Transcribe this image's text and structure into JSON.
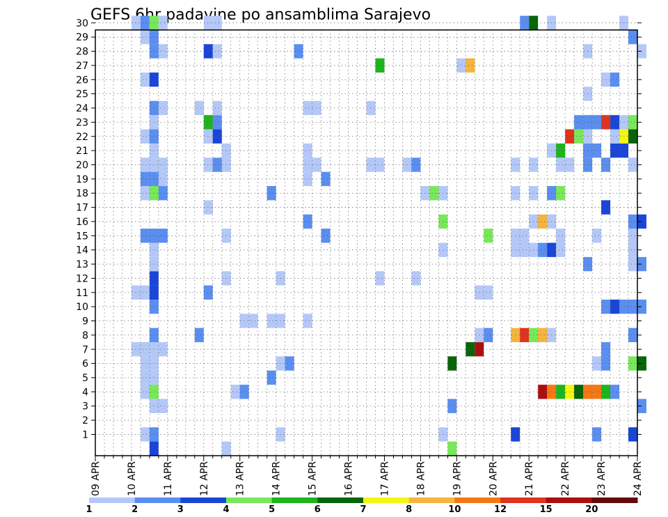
{
  "chart_data": {
    "type": "heatmap",
    "title": "GEFS 6hr padavine po ansamblima Sarajevo",
    "x_ticks": [
      "09 APR",
      "10 APR",
      "11 APR",
      "12 APR",
      "13 APR",
      "14 APR",
      "15 APR",
      "16 APR",
      "17 APR",
      "18 APR",
      "19 APR",
      "20 APR",
      "21 APR",
      "22 APR",
      "23 APR",
      "24 APR"
    ],
    "y_ticks": [
      "1",
      "2",
      "3",
      "4",
      "5",
      "6",
      "7",
      "8",
      "9",
      "10",
      "11",
      "12",
      "13",
      "14",
      "15",
      "16",
      "17",
      "18",
      "19",
      "20",
      "21",
      "22",
      "23",
      "24",
      "25",
      "26",
      "27",
      "28",
      "29",
      "30"
    ],
    "x_range": [
      "09 APR 00",
      "24 APR 00"
    ],
    "y_range": [
      0,
      30
    ],
    "time_step_hours": 6,
    "grid": "dotted",
    "legend": {
      "placement": "bottom",
      "labels": [
        "1",
        "2",
        "3",
        "4",
        "5",
        "6",
        "7",
        "8",
        "10",
        "12",
        "15",
        "20"
      ],
      "colors": [
        "#b4c8f8",
        "#5a8ef0",
        "#1a46d8",
        "#78e85a",
        "#1eb41e",
        "#0a640a",
        "#f5f514",
        "#f5b43c",
        "#f57814",
        "#e1321e",
        "#aa0f0f",
        "#640a0a"
      ]
    },
    "cells": [
      {
        "member": 1,
        "time": "10 APR 06",
        "class": 1
      },
      {
        "member": 1,
        "time": "10 APR 12",
        "class": 2
      },
      {
        "member": 1,
        "time": "14 APR 00",
        "class": 1
      },
      {
        "member": 1,
        "time": "18 APR 12",
        "class": 1
      },
      {
        "member": 1,
        "time": "20 APR 12",
        "class": 3
      },
      {
        "member": 1,
        "time": "22 APR 18",
        "class": 2
      },
      {
        "member": 1,
        "time": "23 APR 18",
        "class": 3
      },
      {
        "member": 3,
        "time": "10 APR 12",
        "class": 1
      },
      {
        "member": 3,
        "time": "10 APR 18",
        "class": 1
      },
      {
        "member": 3,
        "time": "18 APR 18",
        "class": 2
      },
      {
        "member": 3,
        "time": "23 APR 24",
        "class": 2
      },
      {
        "member": 4,
        "time": "10 APR 06",
        "class": 1
      },
      {
        "member": 4,
        "time": "10 APR 12",
        "class": 4
      },
      {
        "member": 4,
        "time": "12 APR 18",
        "class": 1
      },
      {
        "member": 4,
        "time": "13 APR 00",
        "class": 2
      },
      {
        "member": 4,
        "time": "21 APR 06",
        "class": 11
      },
      {
        "member": 4,
        "time": "21 APR 12",
        "class": 9
      },
      {
        "member": 4,
        "time": "21 APR 18",
        "class": 5
      },
      {
        "member": 4,
        "time": "22 APR 00",
        "class": 7
      },
      {
        "member": 4,
        "time": "22 APR 06",
        "class": 6
      },
      {
        "member": 4,
        "time": "22 APR 12",
        "class": 9
      },
      {
        "member": 4,
        "time": "22 APR 18",
        "class": 9
      },
      {
        "member": 4,
        "time": "23 APR 00",
        "class": 5
      },
      {
        "member": 4,
        "time": "23 APR 06",
        "class": 2
      },
      {
        "member": 5,
        "time": "10 APR 06",
        "class": 1
      },
      {
        "member": 5,
        "time": "10 APR 12",
        "class": 1
      },
      {
        "member": 5,
        "time": "13 APR 18",
        "class": 2
      },
      {
        "member": 6,
        "time": "10 APR 06",
        "class": 1
      },
      {
        "member": 6,
        "time": "10 APR 12",
        "class": 1
      },
      {
        "member": 6,
        "time": "14 APR 00",
        "class": 1
      },
      {
        "member": 6,
        "time": "14 APR 06",
        "class": 2
      },
      {
        "member": 6,
        "time": "18 APR 18",
        "class": 6
      },
      {
        "member": 6,
        "time": "22 APR 18",
        "class": 1
      },
      {
        "member": 6,
        "time": "23 APR 00",
        "class": 2
      },
      {
        "member": 6,
        "time": "23 APR 18",
        "class": 4
      },
      {
        "member": 6,
        "time": "24 APR 00",
        "class": 6
      },
      {
        "member": 7,
        "time": "10 APR 00",
        "class": 1
      },
      {
        "member": 7,
        "time": "10 APR 06",
        "class": 1
      },
      {
        "member": 7,
        "time": "10 APR 12",
        "class": 1
      },
      {
        "member": 7,
        "time": "10 APR 18",
        "class": 1
      },
      {
        "member": 7,
        "time": "19 APR 06",
        "class": 6
      },
      {
        "member": 7,
        "time": "19 APR 12",
        "class": 11
      },
      {
        "member": 7,
        "time": "23 APR 00",
        "class": 2
      },
      {
        "member": 8,
        "time": "10 APR 12",
        "class": 2
      },
      {
        "member": 8,
        "time": "11 APR 18",
        "class": 2
      },
      {
        "member": 8,
        "time": "19 APR 12",
        "class": 1
      },
      {
        "member": 8,
        "time": "19 APR 18",
        "class": 2
      },
      {
        "member": 8,
        "time": "20 APR 12",
        "class": 8
      },
      {
        "member": 8,
        "time": "20 APR 18",
        "class": 10
      },
      {
        "member": 8,
        "time": "21 APR 00",
        "class": 4
      },
      {
        "member": 8,
        "time": "21 APR 06",
        "class": 8
      },
      {
        "member": 8,
        "time": "21 APR 12",
        "class": 1
      },
      {
        "member": 8,
        "time": "23 APR 18",
        "class": 2
      },
      {
        "member": 9,
        "time": "13 APR 00",
        "class": 1
      },
      {
        "member": 9,
        "time": "13 APR 06",
        "class": 1
      },
      {
        "member": 9,
        "time": "13 APR 18",
        "class": 1
      },
      {
        "member": 9,
        "time": "14 APR 00",
        "class": 1
      },
      {
        "member": 9,
        "time": "14 APR 18",
        "class": 1
      },
      {
        "member": 10,
        "time": "10 APR 12",
        "class": 2
      },
      {
        "member": 10,
        "time": "23 APR 00",
        "class": 2
      },
      {
        "member": 10,
        "time": "23 APR 06",
        "class": 3
      },
      {
        "member": 10,
        "time": "23 APR 12",
        "class": 2
      },
      {
        "member": 10,
        "time": "23 APR 18",
        "class": 2
      },
      {
        "member": 10,
        "time": "24 APR 00",
        "class": 2
      },
      {
        "member": 11,
        "time": "10 APR 00",
        "class": 1
      },
      {
        "member": 11,
        "time": "10 APR 06",
        "class": 1
      },
      {
        "member": 11,
        "time": "10 APR 12",
        "class": 3
      },
      {
        "member": 11,
        "time": "12 APR 00",
        "class": 2
      },
      {
        "member": 11,
        "time": "19 APR 12",
        "class": 1
      },
      {
        "member": 11,
        "time": "19 APR 18",
        "class": 1
      },
      {
        "member": 12,
        "time": "10 APR 12",
        "class": 3
      },
      {
        "member": 12,
        "time": "12 APR 12",
        "class": 1
      },
      {
        "member": 12,
        "time": "14 APR 00",
        "class": 1
      },
      {
        "member": 12,
        "time": "16 APR 18",
        "class": 1
      },
      {
        "member": 12,
        "time": "17 APR 18",
        "class": 1
      },
      {
        "member": 13,
        "time": "10 APR 12",
        "class": 1
      },
      {
        "member": 13,
        "time": "22 APR 12",
        "class": 2
      },
      {
        "member": 13,
        "time": "23 APR 18",
        "class": 1
      },
      {
        "member": 13,
        "time": "24 APR 00",
        "class": 2
      },
      {
        "member": 14,
        "time": "10 APR 12",
        "class": 1
      },
      {
        "member": 14,
        "time": "18 APR 12",
        "class": 1
      },
      {
        "member": 14,
        "time": "20 APR 12",
        "class": 1
      },
      {
        "member": 14,
        "time": "20 APR 18",
        "class": 1
      },
      {
        "member": 14,
        "time": "21 APR 00",
        "class": 1
      },
      {
        "member": 14,
        "time": "21 APR 06",
        "class": 2
      },
      {
        "member": 14,
        "time": "21 APR 12",
        "class": 3
      },
      {
        "member": 14,
        "time": "21 APR 18",
        "class": 1
      },
      {
        "member": 14,
        "time": "23 APR 18",
        "class": 1
      },
      {
        "member": 15,
        "time": "10 APR 06",
        "class": 2
      },
      {
        "member": 15,
        "time": "10 APR 12",
        "class": 2
      },
      {
        "member": 15,
        "time": "10 APR 18",
        "class": 2
      },
      {
        "member": 15,
        "time": "12 APR 12",
        "class": 1
      },
      {
        "member": 15,
        "time": "15 APR 06",
        "class": 2
      },
      {
        "member": 15,
        "time": "19 APR 18",
        "class": 4
      },
      {
        "member": 15,
        "time": "20 APR 12",
        "class": 1
      },
      {
        "member": 15,
        "time": "20 APR 18",
        "class": 1
      },
      {
        "member": 15,
        "time": "21 APR 18",
        "class": 1
      },
      {
        "member": 15,
        "time": "22 APR 18",
        "class": 1
      },
      {
        "member": 15,
        "time": "23 APR 18",
        "class": 1
      },
      {
        "member": 16,
        "time": "14 APR 18",
        "class": 2
      },
      {
        "member": 16,
        "time": "18 APR 12",
        "class": 4
      },
      {
        "member": 16,
        "time": "21 APR 00",
        "class": 1
      },
      {
        "member": 16,
        "time": "21 APR 06",
        "class": 8
      },
      {
        "member": 16,
        "time": "21 APR 12",
        "class": 1
      },
      {
        "member": 16,
        "time": "23 APR 18",
        "class": 2
      },
      {
        "member": 16,
        "time": "24 APR 00",
        "class": 3
      },
      {
        "member": 17,
        "time": "12 APR 00",
        "class": 1
      },
      {
        "member": 17,
        "time": "23 APR 00",
        "class": 3
      },
      {
        "member": 18,
        "time": "10 APR 06",
        "class": 1
      },
      {
        "member": 18,
        "time": "10 APR 12",
        "class": 4
      },
      {
        "member": 18,
        "time": "10 APR 18",
        "class": 2
      },
      {
        "member": 18,
        "time": "13 APR 18",
        "class": 2
      },
      {
        "member": 18,
        "time": "18 APR 00",
        "class": 1
      },
      {
        "member": 18,
        "time": "18 APR 06",
        "class": 4
      },
      {
        "member": 18,
        "time": "18 APR 12",
        "class": 1
      },
      {
        "member": 18,
        "time": "20 APR 12",
        "class": 1
      },
      {
        "member": 18,
        "time": "21 APR 00",
        "class": 1
      },
      {
        "member": 18,
        "time": "21 APR 12",
        "class": 2
      },
      {
        "member": 18,
        "time": "21 APR 18",
        "class": 4
      },
      {
        "member": 19,
        "time": "10 APR 06",
        "class": 2
      },
      {
        "member": 19,
        "time": "10 APR 12",
        "class": 2
      },
      {
        "member": 19,
        "time": "10 APR 18",
        "class": 1
      },
      {
        "member": 19,
        "time": "14 APR 18",
        "class": 1
      },
      {
        "member": 19,
        "time": "15 APR 06",
        "class": 2
      },
      {
        "member": 20,
        "time": "10 APR 06",
        "class": 1
      },
      {
        "member": 20,
        "time": "10 APR 12",
        "class": 1
      },
      {
        "member": 20,
        "time": "10 APR 18",
        "class": 1
      },
      {
        "member": 20,
        "time": "12 APR 00",
        "class": 1
      },
      {
        "member": 20,
        "time": "12 APR 06",
        "class": 2
      },
      {
        "member": 20,
        "time": "12 APR 12",
        "class": 1
      },
      {
        "member": 20,
        "time": "14 APR 18",
        "class": 1
      },
      {
        "member": 20,
        "time": "15 APR 00",
        "class": 1
      },
      {
        "member": 20,
        "time": "16 APR 12",
        "class": 1
      },
      {
        "member": 20,
        "time": "16 APR 18",
        "class": 1
      },
      {
        "member": 20,
        "time": "17 APR 12",
        "class": 1
      },
      {
        "member": 20,
        "time": "17 APR 18",
        "class": 2
      },
      {
        "member": 20,
        "time": "20 APR 12",
        "class": 1
      },
      {
        "member": 20,
        "time": "21 APR 00",
        "class": 1
      },
      {
        "member": 20,
        "time": "21 APR 18",
        "class": 1
      },
      {
        "member": 20,
        "time": "22 APR 00",
        "class": 1
      },
      {
        "member": 20,
        "time": "22 APR 12",
        "class": 2
      },
      {
        "member": 20,
        "time": "23 APR 00",
        "class": 2
      },
      {
        "member": 20,
        "time": "23 APR 18",
        "class": 1
      },
      {
        "member": 21,
        "time": "10 APR 12",
        "class": 1
      },
      {
        "member": 21,
        "time": "12 APR 12",
        "class": 1
      },
      {
        "member": 21,
        "time": "14 APR 18",
        "class": 1
      },
      {
        "member": 21,
        "time": "21 APR 12",
        "class": 1
      },
      {
        "member": 21,
        "time": "21 APR 18",
        "class": 5
      },
      {
        "member": 21,
        "time": "22 APR 12",
        "class": 2
      },
      {
        "member": 21,
        "time": "22 APR 18",
        "class": 2
      },
      {
        "member": 21,
        "time": "23 APR 06",
        "class": 3
      },
      {
        "member": 21,
        "time": "23 APR 12",
        "class": 3
      },
      {
        "member": 22,
        "time": "10 APR 06",
        "class": 1
      },
      {
        "member": 22,
        "time": "10 APR 12",
        "class": 2
      },
      {
        "member": 22,
        "time": "12 APR 00",
        "class": 1
      },
      {
        "member": 22,
        "time": "12 APR 06",
        "class": 3
      },
      {
        "member": 22,
        "time": "22 APR 00",
        "class": 10
      },
      {
        "member": 22,
        "time": "22 APR 06",
        "class": 4
      },
      {
        "member": 22,
        "time": "22 APR 12",
        "class": 1
      },
      {
        "member": 22,
        "time": "23 APR 06",
        "class": 1
      },
      {
        "member": 22,
        "time": "23 APR 12",
        "class": 7
      },
      {
        "member": 22,
        "time": "23 APR 18",
        "class": 6
      },
      {
        "member": 23,
        "time": "10 APR 12",
        "class": 1
      },
      {
        "member": 23,
        "time": "12 APR 00",
        "class": 5
      },
      {
        "member": 23,
        "time": "12 APR 06",
        "class": 2
      },
      {
        "member": 23,
        "time": "22 APR 06",
        "class": 2
      },
      {
        "member": 23,
        "time": "22 APR 12",
        "class": 2
      },
      {
        "member": 23,
        "time": "22 APR 18",
        "class": 2
      },
      {
        "member": 23,
        "time": "23 APR 00",
        "class": 10
      },
      {
        "member": 23,
        "time": "23 APR 06",
        "class": 3
      },
      {
        "member": 23,
        "time": "23 APR 12",
        "class": 1
      },
      {
        "member": 23,
        "time": "23 APR 18",
        "class": 4
      },
      {
        "member": 24,
        "time": "10 APR 12",
        "class": 2
      },
      {
        "member": 24,
        "time": "10 APR 18",
        "class": 1
      },
      {
        "member": 24,
        "time": "11 APR 18",
        "class": 1
      },
      {
        "member": 24,
        "time": "12 APR 06",
        "class": 1
      },
      {
        "member": 24,
        "time": "14 APR 18",
        "class": 1
      },
      {
        "member": 24,
        "time": "15 APR 00",
        "class": 1
      },
      {
        "member": 24,
        "time": "16 APR 12",
        "class": 1
      },
      {
        "member": 25,
        "time": "22 APR 12",
        "class": 1
      },
      {
        "member": 26,
        "time": "10 APR 06",
        "class": 1
      },
      {
        "member": 26,
        "time": "10 APR 12",
        "class": 3
      },
      {
        "member": 26,
        "time": "23 APR 00",
        "class": 1
      },
      {
        "member": 26,
        "time": "23 APR 06",
        "class": 2
      },
      {
        "member": 27,
        "time": "16 APR 18",
        "class": 5
      },
      {
        "member": 27,
        "time": "19 APR 00",
        "class": 1
      },
      {
        "member": 27,
        "time": "19 APR 06",
        "class": 8
      },
      {
        "member": 28,
        "time": "10 APR 12",
        "class": 2
      },
      {
        "member": 28,
        "time": "10 APR 18",
        "class": 1
      },
      {
        "member": 28,
        "time": "12 APR 00",
        "class": 3
      },
      {
        "member": 28,
        "time": "12 APR 06",
        "class": 1
      },
      {
        "member": 28,
        "time": "14 APR 12",
        "class": 2
      },
      {
        "member": 28,
        "time": "22 APR 12",
        "class": 1
      },
      {
        "member": 28,
        "time": "24 APR 00",
        "class": 1
      },
      {
        "member": 29,
        "time": "10 APR 06",
        "class": 1
      },
      {
        "member": 29,
        "time": "10 APR 12",
        "class": 2
      },
      {
        "member": 29,
        "time": "23 APR 18",
        "class": 2
      },
      {
        "member": 30,
        "time": "10 APR 00",
        "class": 1
      },
      {
        "member": 30,
        "time": "10 APR 06",
        "class": 2
      },
      {
        "member": 30,
        "time": "10 APR 12",
        "class": 4
      },
      {
        "member": 30,
        "time": "10 APR 18",
        "class": 1
      },
      {
        "member": 30,
        "time": "12 APR 00",
        "class": 1
      },
      {
        "member": 30,
        "time": "12 APR 06",
        "class": 1
      },
      {
        "member": 30,
        "time": "20 APR 18",
        "class": 2
      },
      {
        "member": 30,
        "time": "21 APR 00",
        "class": 6
      },
      {
        "member": 30,
        "time": "21 APR 12",
        "class": 1
      },
      {
        "member": 30,
        "time": "23 APR 12",
        "class": 1
      },
      {
        "member": 0,
        "time": "10 APR 12",
        "class": 3
      },
      {
        "member": 0,
        "time": "12 APR 12",
        "class": 1
      },
      {
        "member": 0,
        "time": "18 APR 18",
        "class": 4
      }
    ]
  }
}
